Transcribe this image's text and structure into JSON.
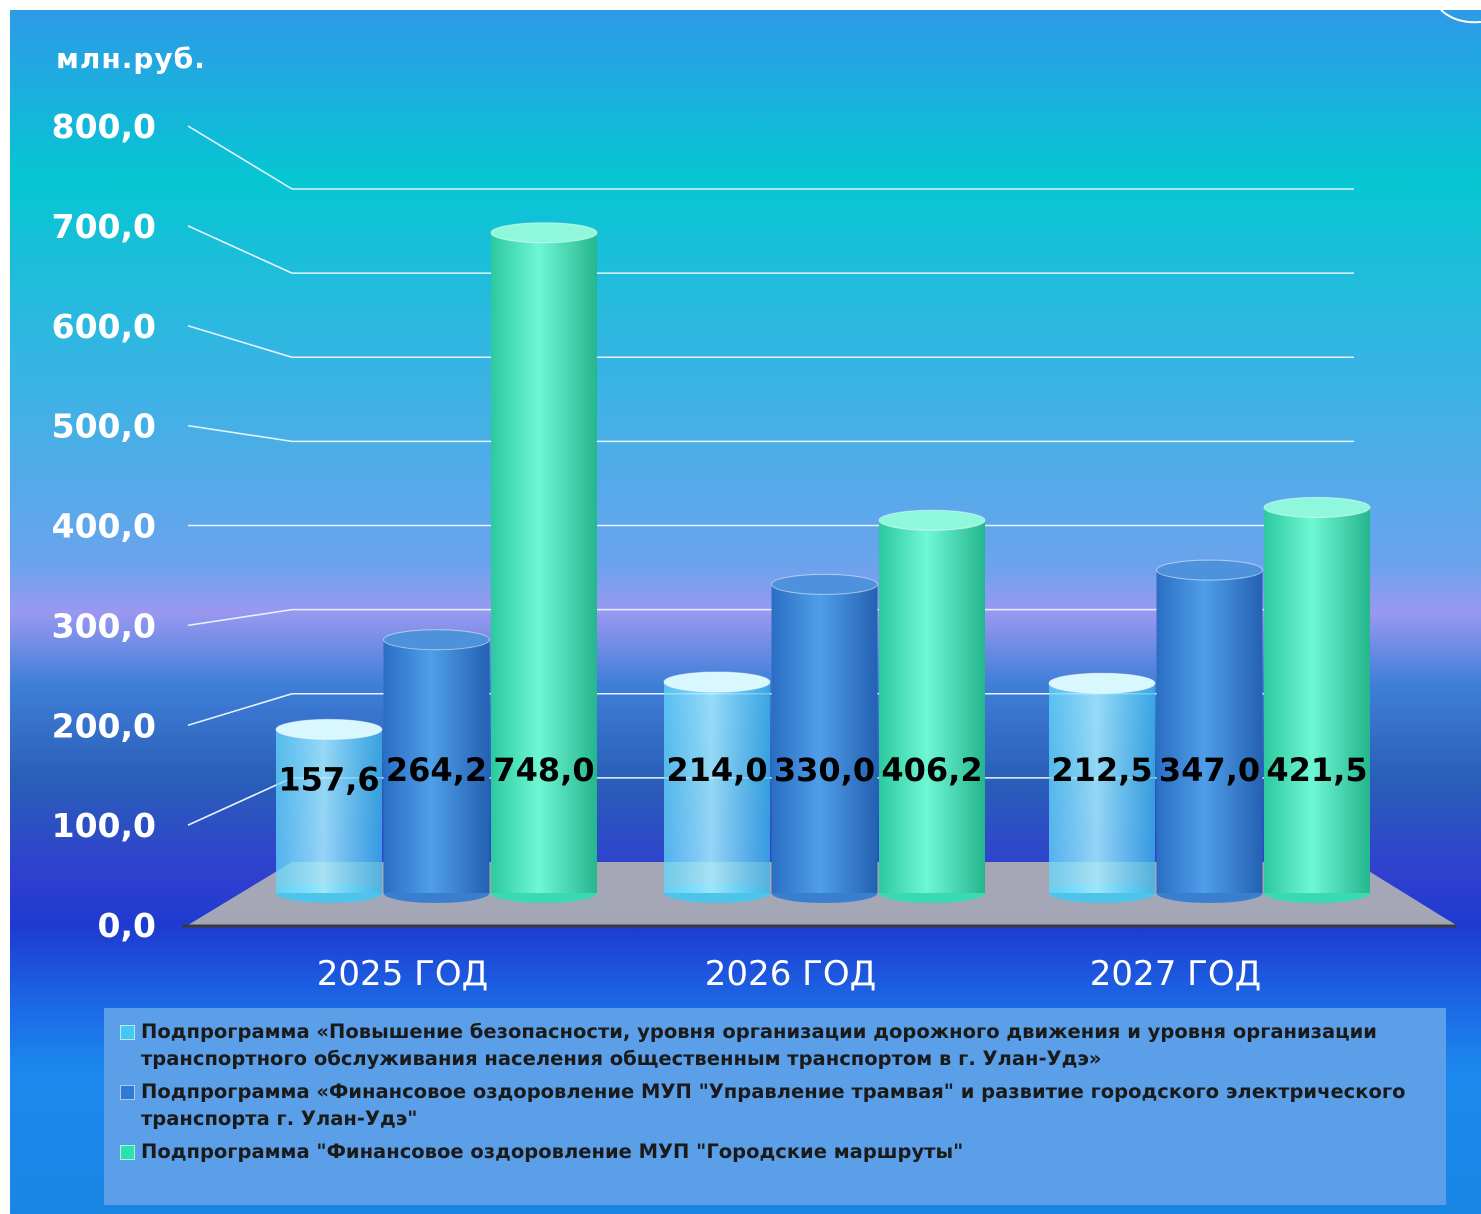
{
  "chart_data": {
    "type": "bar",
    "unit_label": "млн.руб.",
    "categories": [
      "2025 ГОД",
      "2026 ГОД",
      "2027 ГОД"
    ],
    "ylim": [
      0,
      800
    ],
    "yticks": [
      "0,0",
      "100,0",
      "200,0",
      "300,0",
      "400,0",
      "500,0",
      "600,0",
      "700,0",
      "800,0"
    ],
    "series": [
      {
        "name": "Подпрограмма «Повышение безопасности, уровня организации дорожного движения и уровня организации транспортного обслуживания населения общественным транспортом в г. Улан-Удэ»",
        "values": [
          157.6,
          214.0,
          212.5
        ],
        "labels": [
          "157,6",
          "214,0",
          "212,5"
        ],
        "color": "#45c8f0"
      },
      {
        "name": "Подпрограмма «Финансовое оздоровление МУП \"Управление трамвая\" и развитие городского электрического транспорта г. Улан-Удэ\"",
        "values": [
          264.2,
          330.0,
          347.0
        ],
        "labels": [
          "264,2",
          "330,0",
          "347,0"
        ],
        "color": "#2f7bd2"
      },
      {
        "name": "Подпрограмма \"Финансовое оздоровление МУП \"Городские маршруты\"",
        "values": [
          748.0,
          406.2,
          421.5
        ],
        "labels": [
          "748,0",
          "406,2",
          "421,5"
        ],
        "color": "#2ee0b0"
      }
    ],
    "grid": true,
    "legend_position": "bottom",
    "style": "3d-cylinder"
  }
}
